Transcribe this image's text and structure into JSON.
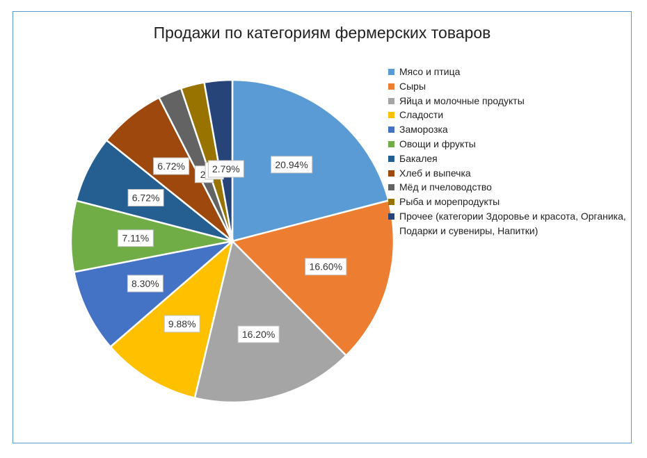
{
  "chart_data": {
    "type": "pie",
    "title": "Продажи по категориям фермерских товаров",
    "legend_position": "right",
    "categories": [
      "Мясо и птица",
      "Сыры",
      "Яйца и молочные продукты",
      "Сладости",
      "Заморозка",
      "Овощи и фрукты",
      "Бакалея",
      "Хлеб и выпечка",
      "Мёд и пчеловодство",
      "Рыба и морепродукты",
      "Прочее (категории Здоровье и красота, Органика, Подарки и сувениры, Напитки)"
    ],
    "values": [
      20.94,
      16.6,
      16.2,
      9.88,
      8.3,
      7.11,
      6.72,
      6.72,
      2.36,
      2.36,
      2.79
    ],
    "labels": [
      "20.94%",
      "16.60%",
      "16.20%",
      "9.88%",
      "8.30%",
      "7.11%",
      "6.72%",
      "6.72%",
      "2.",
      "2.",
      "2.79%"
    ],
    "colors": [
      "#5b9bd5",
      "#ed7d31",
      "#a5a5a5",
      "#ffc000",
      "#4472c4",
      "#70ad47",
      "#255e91",
      "#9e480e",
      "#636363",
      "#997300",
      "#264478"
    ]
  }
}
